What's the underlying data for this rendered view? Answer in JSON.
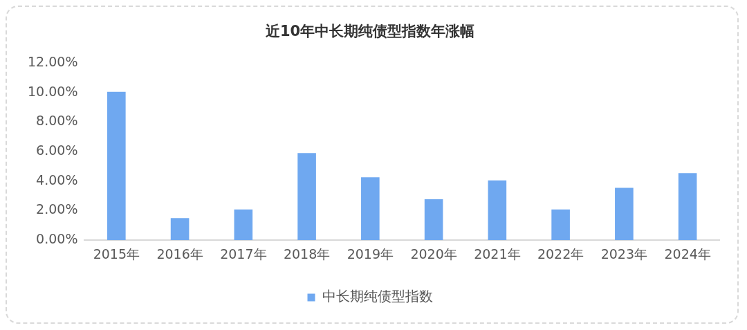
{
  "chart_data": {
    "type": "bar",
    "title": "近10年中长期纯债型指数年涨幅",
    "categories": [
      "2015年",
      "2016年",
      "2017年",
      "2018年",
      "2019年",
      "2020年",
      "2021年",
      "2022年",
      "2023年",
      "2024年"
    ],
    "series": [
      {
        "name": "中长期纯债型指数",
        "color": "#6fa8f0",
        "values": [
          10.05,
          1.5,
          2.08,
          5.9,
          4.26,
          2.78,
          4.05,
          2.08,
          3.55,
          4.54
        ]
      }
    ],
    "ylim": [
      0,
      12
    ],
    "yticks": [
      {
        "value": 0,
        "label": "0.00%"
      },
      {
        "value": 2,
        "label": "2.00%"
      },
      {
        "value": 4,
        "label": "4.00%"
      },
      {
        "value": 6,
        "label": "6.00%"
      },
      {
        "value": 8,
        "label": "8.00%"
      },
      {
        "value": 10,
        "label": "10.00%"
      },
      {
        "value": 12,
        "label": "12.00%"
      }
    ],
    "grid": false,
    "legend": "bottom"
  }
}
